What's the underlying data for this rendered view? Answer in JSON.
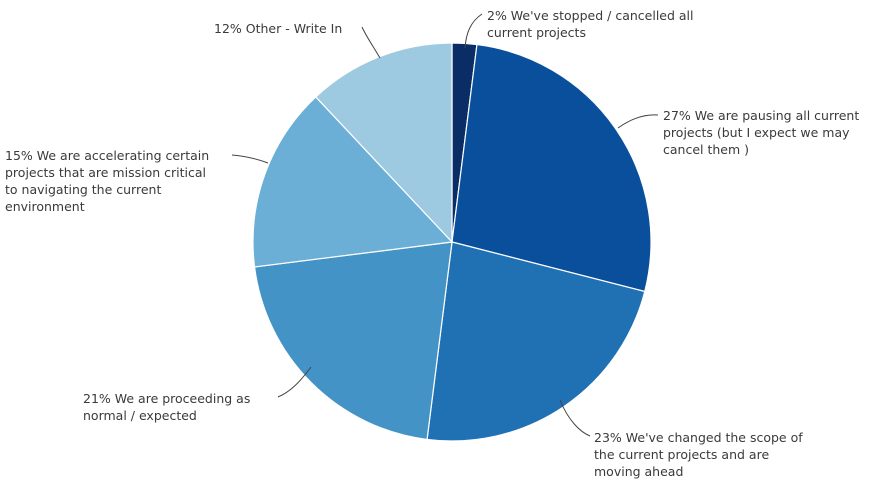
{
  "chart_data": {
    "type": "pie",
    "title": "",
    "slices": [
      {
        "label": "2% We've stopped / cancelled all current projects",
        "value": 2,
        "color": "#0b2d66"
      },
      {
        "label": "27% We are pausing all current projects (but I expect we may cancel them )",
        "value": 27,
        "color": "#0a4f9c"
      },
      {
        "label": "23% We've changed the scope of the current projects and are moving ahead",
        "value": 23,
        "color": "#2070b4"
      },
      {
        "label": "21% We are proceeding as normal / expected",
        "value": 21,
        "color": "#4393c7"
      },
      {
        "label": "15% We are accelerating certain projects that are mission critical to navigating the current environment",
        "value": 15,
        "color": "#6baed6"
      },
      {
        "label": "12% Other - Write In",
        "value": 12,
        "color": "#9ecae1"
      }
    ],
    "label_lines": [
      [
        "2% We've stopped / cancelled all",
        "current projects"
      ],
      [
        "27% We are pausing all current",
        "projects (but I expect we may",
        "cancel them )"
      ],
      [
        "23% We've changed the scope of",
        "the current projects and are",
        "moving ahead"
      ],
      [
        "21% We are proceeding as",
        "normal / expected"
      ],
      [
        "15% We are accelerating certain",
        "projects that are mission critical",
        "to navigating the current",
        "environment"
      ],
      [
        "12% Other - Write In"
      ]
    ]
  }
}
